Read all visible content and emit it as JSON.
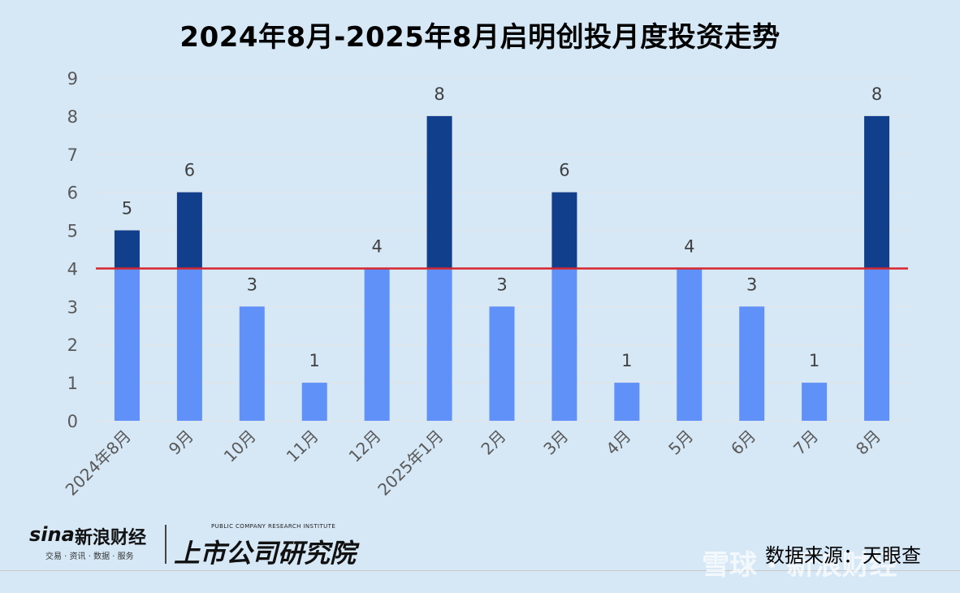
{
  "chart_data": {
    "type": "bar",
    "title": "2024年8月-2025年8月启明创投月度投资走势",
    "categories": [
      "2024年8月",
      "9月",
      "10月",
      "11月",
      "12月",
      "2025年1月",
      "2月",
      "3月",
      "4月",
      "5月",
      "6月",
      "7月",
      "8月"
    ],
    "values": [
      5,
      6,
      3,
      1,
      4,
      8,
      3,
      6,
      1,
      4,
      3,
      1,
      8
    ],
    "ylim": [
      0,
      9
    ],
    "yticks": [
      "0",
      "1",
      "2",
      "3",
      "4",
      "5",
      "6",
      "7",
      "8",
      "9"
    ],
    "reference_line": 4,
    "grid": true,
    "colors": {
      "bar_below_line": "#6091f8",
      "bar_above_line": "#123f8c",
      "reference_line": "#d7262e",
      "gridline": "#e3e3e3",
      "axis_text": "#595959"
    }
  },
  "footer": {
    "sina_logo_text": "sina",
    "sina_cn": "新浪财经",
    "sina_sub": "交易 · 资讯 · 数据 · 服务",
    "institute_en": "PUBLIC COMPANY RESEARCH INSTITUTE",
    "institute_cn": "上市公司研究院",
    "source": "数据来源：天眼查",
    "watermark": "雪球 · 新浪财经"
  }
}
